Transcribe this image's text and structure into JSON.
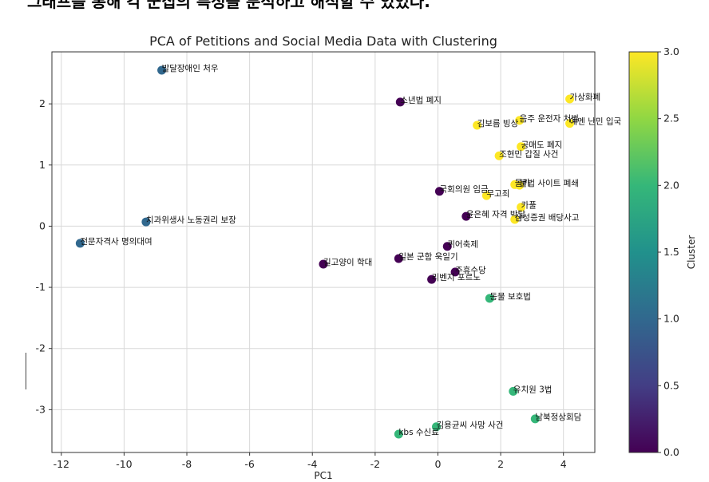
{
  "caption": "그래프를 통해 각 군집의 특성을 분석하고 해석할 수 있었다.",
  "chart_data": {
    "type": "scatter",
    "title": "PCA of Petitions and Social Media Data with Clustering",
    "xlabel": "PC1",
    "ylabel": "",
    "xlim": [
      -12.3,
      5.0
    ],
    "ylim": [
      -3.7,
      2.85
    ],
    "xticks": [
      -12,
      -10,
      -8,
      -6,
      -4,
      -2,
      0,
      2,
      4
    ],
    "yticks": [
      -3,
      -2,
      -1,
      0,
      1,
      2
    ],
    "grid": true,
    "colormap": "viridis",
    "colorbar": {
      "label": "Cluster",
      "range": [
        0.0,
        3.0
      ],
      "ticks": [
        "0.0",
        "0.5",
        "1.0",
        "1.5",
        "2.0",
        "2.5",
        "3.0"
      ]
    },
    "points": [
      {
        "x": -8.8,
        "y": 2.55,
        "cluster": 1,
        "label": "발달장애인 처우"
      },
      {
        "x": -9.3,
        "y": 0.07,
        "cluster": 1,
        "label": "치과위생사 노동권리 보장"
      },
      {
        "x": -11.4,
        "y": -0.28,
        "cluster": 1,
        "label": "전문자격사 명의대여"
      },
      {
        "x": -1.2,
        "y": 2.03,
        "cluster": 0,
        "label": "소년법 폐지"
      },
      {
        "x": 0.05,
        "y": 0.57,
        "cluster": 0,
        "label": "국회의원 임금"
      },
      {
        "x": 0.9,
        "y": 0.16,
        "cluster": 0,
        "label": "윤은혜 자격 박탈"
      },
      {
        "x": 0.3,
        "y": -0.33,
        "cluster": 0,
        "label": "퀴어축제"
      },
      {
        "x": -1.25,
        "y": -0.53,
        "cluster": 0,
        "label": "일본 군함 욱일기"
      },
      {
        "x": -3.65,
        "y": -0.62,
        "cluster": 0,
        "label": "길고양이 학대"
      },
      {
        "x": 0.55,
        "y": -0.75,
        "cluster": 0,
        "label": "주휴수당"
      },
      {
        "x": -0.2,
        "y": -0.87,
        "cluster": 0,
        "label": "리벤지 포르노"
      },
      {
        "x": 4.2,
        "y": 2.08,
        "cluster": 3,
        "label": "가상화폐"
      },
      {
        "x": 2.6,
        "y": 1.73,
        "cluster": 3,
        "label": "음주 운전자 처벌"
      },
      {
        "x": 1.25,
        "y": 1.65,
        "cluster": 3,
        "label": "김보름 빙상"
      },
      {
        "x": 4.2,
        "y": 1.68,
        "cluster": 3,
        "label": "예멘 난민 입국"
      },
      {
        "x": 2.65,
        "y": 1.3,
        "cluster": 3,
        "label": "공매도 폐지"
      },
      {
        "x": 1.95,
        "y": 1.15,
        "cluster": 3,
        "label": "조현민 갑질 사건"
      },
      {
        "x": 2.45,
        "y": 0.68,
        "cluster": 3,
        "label": "몰카"
      },
      {
        "x": 2.6,
        "y": 0.67,
        "cluster": 3,
        "label": "불법 사이트 폐쇄"
      },
      {
        "x": 1.55,
        "y": 0.5,
        "cluster": 3,
        "label": "무고죄"
      },
      {
        "x": 2.65,
        "y": 0.31,
        "cluster": 3,
        "label": "카풀"
      },
      {
        "x": 2.45,
        "y": 0.11,
        "cluster": 3,
        "label": "삼성증권 배당사고"
      },
      {
        "x": 1.65,
        "y": -1.18,
        "cluster": 2,
        "label": "동물 보호법"
      },
      {
        "x": 2.4,
        "y": -2.7,
        "cluster": 2,
        "label": "유치원 3법"
      },
      {
        "x": 3.1,
        "y": -3.15,
        "cluster": 2,
        "label": "남북정상회담"
      },
      {
        "x": -0.05,
        "y": -3.28,
        "cluster": 2,
        "label": "김용균씨 사망 사건"
      },
      {
        "x": -1.25,
        "y": -3.4,
        "cluster": 2,
        "label": "kbs 수신료"
      }
    ]
  }
}
